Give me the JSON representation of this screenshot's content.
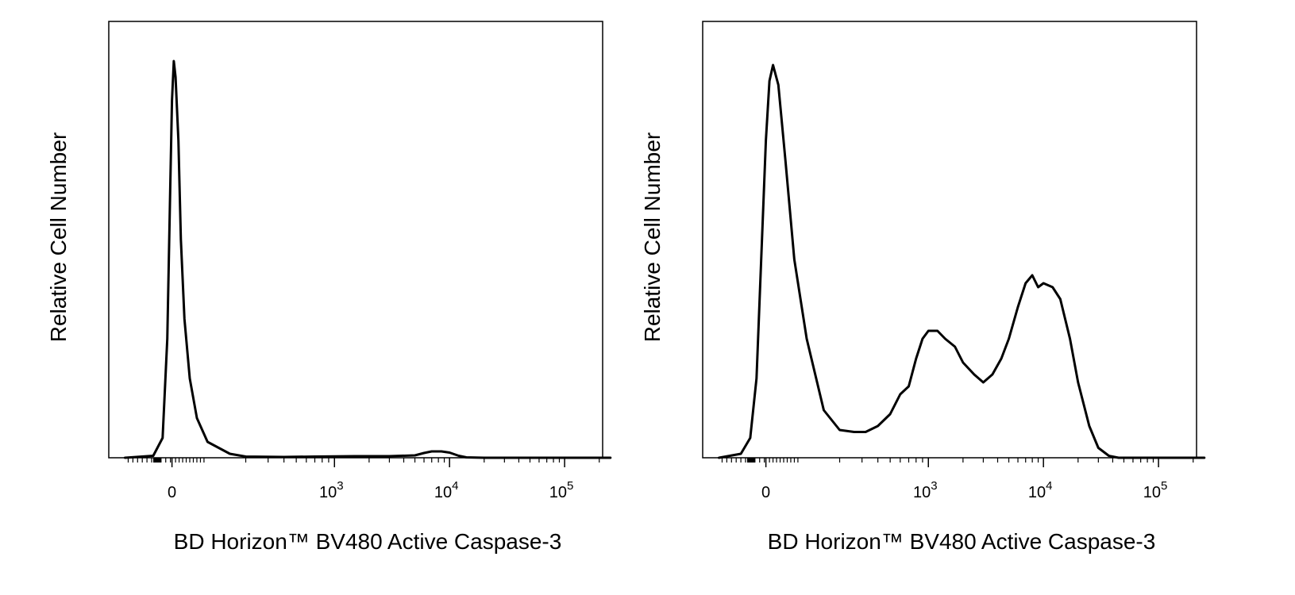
{
  "chart_data": [
    {
      "type": "line",
      "title": "",
      "xlabel": "BD Horizon™ BV480 Active Caspase-3",
      "ylabel": "Relative Cell Number",
      "x_scale": "biexponential",
      "xlim": [
        -150,
        250000
      ],
      "ylim": [
        0,
        1.1
      ],
      "grid": false,
      "legend": "none",
      "color": "#000000",
      "x_ticks": [
        {
          "label": "0",
          "value": 0
        },
        {
          "base": "10",
          "exp": "3",
          "value": 1000
        },
        {
          "base": "10",
          "exp": "4",
          "value": 10000
        },
        {
          "base": "10",
          "exp": "5",
          "value": 100000
        }
      ],
      "series": [
        {
          "points": [
            [
              -150,
              0
            ],
            [
              -60,
              0.005
            ],
            [
              -30,
              0.05
            ],
            [
              -15,
              0.3
            ],
            [
              -5,
              0.7
            ],
            [
              0,
              0.9
            ],
            [
              5,
              1.0
            ],
            [
              10,
              0.96
            ],
            [
              18,
              0.8
            ],
            [
              25,
              0.55
            ],
            [
              35,
              0.35
            ],
            [
              50,
              0.2
            ],
            [
              70,
              0.1
            ],
            [
              100,
              0.04
            ],
            [
              150,
              0.01
            ],
            [
              200,
              0.003
            ],
            [
              400,
              0.002
            ],
            [
              700,
              0.003
            ],
            [
              1500,
              0.004
            ],
            [
              3000,
              0.004
            ],
            [
              5000,
              0.006
            ],
            [
              6000,
              0.012
            ],
            [
              7000,
              0.016
            ],
            [
              8500,
              0.016
            ],
            [
              10000,
              0.013
            ],
            [
              12000,
              0.005
            ],
            [
              14000,
              0.001
            ],
            [
              20000,
              0
            ],
            [
              250000,
              0
            ]
          ]
        }
      ]
    },
    {
      "type": "line",
      "title": "",
      "xlabel": "BD Horizon™ BV480 Active Caspase-3",
      "ylabel": "Relative Cell Number",
      "x_scale": "biexponential",
      "xlim": [
        -150,
        250000
      ],
      "ylim": [
        0,
        1.1
      ],
      "grid": false,
      "legend": "none",
      "color": "#000000",
      "x_ticks": [
        {
          "label": "0",
          "value": 0
        },
        {
          "base": "10",
          "exp": "3",
          "value": 1000
        },
        {
          "base": "10",
          "exp": "4",
          "value": 10000
        },
        {
          "base": "10",
          "exp": "5",
          "value": 100000
        }
      ],
      "series": [
        {
          "points": [
            [
              -150,
              0
            ],
            [
              -80,
              0.01
            ],
            [
              -50,
              0.05
            ],
            [
              -30,
              0.2
            ],
            [
              -15,
              0.5
            ],
            [
              0,
              0.8
            ],
            [
              10,
              0.95
            ],
            [
              20,
              0.99
            ],
            [
              35,
              0.94
            ],
            [
              55,
              0.75
            ],
            [
              80,
              0.5
            ],
            [
              110,
              0.3
            ],
            [
              150,
              0.12
            ],
            [
              200,
              0.07
            ],
            [
              260,
              0.065
            ],
            [
              320,
              0.065
            ],
            [
              400,
              0.08
            ],
            [
              500,
              0.11
            ],
            [
              600,
              0.16
            ],
            [
              700,
              0.18
            ],
            [
              800,
              0.25
            ],
            [
              900,
              0.3
            ],
            [
              1000,
              0.32
            ],
            [
              1200,
              0.32
            ],
            [
              1400,
              0.3
            ],
            [
              1700,
              0.28
            ],
            [
              2000,
              0.24
            ],
            [
              2500,
              0.21
            ],
            [
              3000,
              0.19
            ],
            [
              3600,
              0.21
            ],
            [
              4300,
              0.25
            ],
            [
              5000,
              0.3
            ],
            [
              6000,
              0.38
            ],
            [
              7000,
              0.44
            ],
            [
              8000,
              0.46
            ],
            [
              9000,
              0.43
            ],
            [
              10000,
              0.44
            ],
            [
              12000,
              0.43
            ],
            [
              14000,
              0.4
            ],
            [
              17000,
              0.3
            ],
            [
              20000,
              0.19
            ],
            [
              25000,
              0.08
            ],
            [
              30000,
              0.025
            ],
            [
              37000,
              0.005
            ],
            [
              45000,
              0
            ],
            [
              250000,
              0
            ]
          ]
        }
      ]
    }
  ]
}
